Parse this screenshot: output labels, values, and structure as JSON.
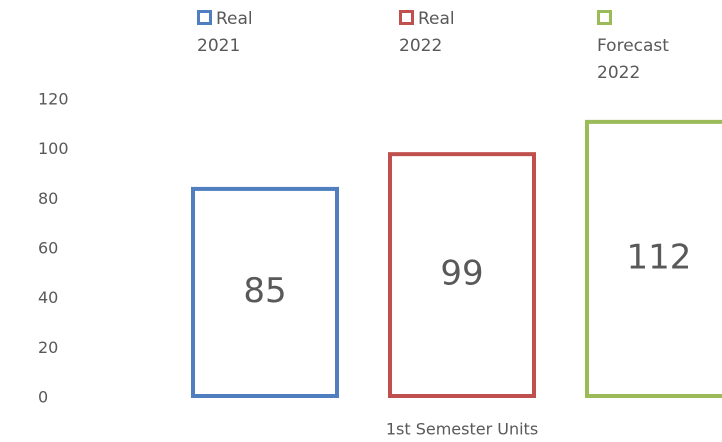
{
  "chart_data": {
    "type": "bar",
    "categories": [
      "1st Semester Units"
    ],
    "series": [
      {
        "name": "Real 2021",
        "color": "#4f7fbf",
        "values": [
          85
        ]
      },
      {
        "name": "Real 2022",
        "color": "#c0504d",
        "values": [
          99
        ]
      },
      {
        "name": "Forecast 2022",
        "color": "#9bbb59",
        "values": [
          112
        ]
      }
    ],
    "ylim": [
      0,
      120
    ],
    "yticks": [
      0,
      20,
      40,
      60,
      80,
      100,
      120
    ],
    "grid": false,
    "legend": "top"
  }
}
